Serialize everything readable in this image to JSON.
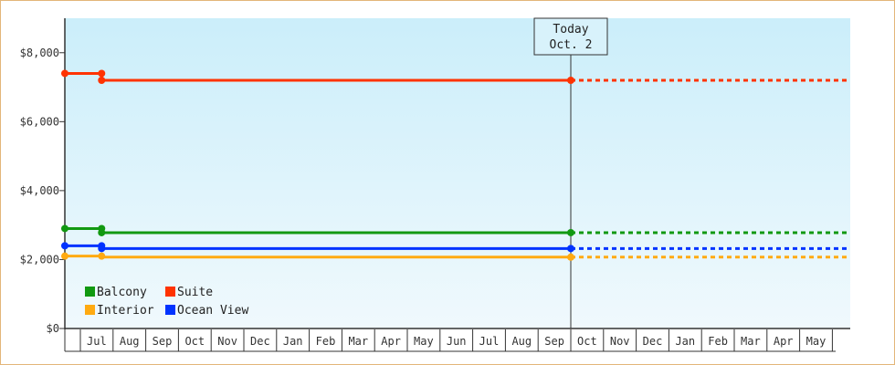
{
  "chart_data": {
    "type": "line",
    "y_axis": {
      "min": 0,
      "max": 9000,
      "ticks": [
        0,
        2000,
        4000,
        6000,
        8000
      ],
      "tick_labels": [
        "$0",
        "$2,000",
        "$4,000",
        "$6,000",
        "$8,000"
      ]
    },
    "months": [
      "Jul",
      "Aug",
      "Sep",
      "Oct",
      "Nov",
      "Dec",
      "Jan",
      "Feb",
      "Mar",
      "Apr",
      "May",
      "Jun",
      "Jul",
      "Aug",
      "Sep",
      "Oct",
      "Nov",
      "Dec",
      "Jan",
      "Feb",
      "Mar",
      "Apr",
      "May"
    ],
    "today": {
      "line1": "Today",
      "line2": "Oct. 2",
      "month_index": 15.0
    },
    "series": [
      {
        "name": "Suite",
        "color": "#ff3300",
        "points": [
          [
            -1.0,
            7400
          ],
          [
            0.65,
            7400
          ],
          [
            0.65,
            7200
          ],
          [
            15.0,
            7200
          ]
        ],
        "markers": [
          [
            -1.0,
            7400
          ],
          [
            0.65,
            7400
          ],
          [
            0.65,
            7200
          ],
          [
            15.0,
            7200
          ]
        ],
        "forecast": [
          [
            15.0,
            7200
          ],
          [
            23.5,
            7200
          ]
        ]
      },
      {
        "name": "Balcony",
        "color": "#119911",
        "points": [
          [
            -1.0,
            2900
          ],
          [
            0.65,
            2900
          ],
          [
            0.65,
            2780
          ],
          [
            15.0,
            2780
          ]
        ],
        "markers": [
          [
            -1.0,
            2900
          ],
          [
            0.65,
            2900
          ],
          [
            0.65,
            2780
          ],
          [
            15.0,
            2780
          ]
        ],
        "forecast": [
          [
            15.0,
            2780
          ],
          [
            23.5,
            2780
          ]
        ]
      },
      {
        "name": "Ocean View",
        "color": "#0033ff",
        "points": [
          [
            -1.0,
            2400
          ],
          [
            0.65,
            2400
          ],
          [
            0.65,
            2320
          ],
          [
            15.0,
            2320
          ]
        ],
        "markers": [
          [
            -1.0,
            2400
          ],
          [
            0.65,
            2400
          ],
          [
            0.65,
            2320
          ],
          [
            15.0,
            2320
          ]
        ],
        "forecast": [
          [
            15.0,
            2320
          ],
          [
            23.5,
            2320
          ]
        ]
      },
      {
        "name": "Interior",
        "color": "#ffaa11",
        "points": [
          [
            -1.0,
            2100
          ],
          [
            0.65,
            2100
          ],
          [
            0.65,
            2070
          ],
          [
            15.0,
            2070
          ]
        ],
        "markers": [
          [
            -1.0,
            2100
          ],
          [
            0.65,
            2100
          ],
          [
            15.0,
            2070
          ]
        ],
        "forecast": [
          [
            15.0,
            2070
          ],
          [
            23.5,
            2070
          ]
        ]
      }
    ],
    "legend": {
      "placement": "bottom-left",
      "rows": [
        [
          "Balcony",
          "Suite"
        ],
        [
          "Interior",
          "Ocean View"
        ]
      ]
    }
  }
}
